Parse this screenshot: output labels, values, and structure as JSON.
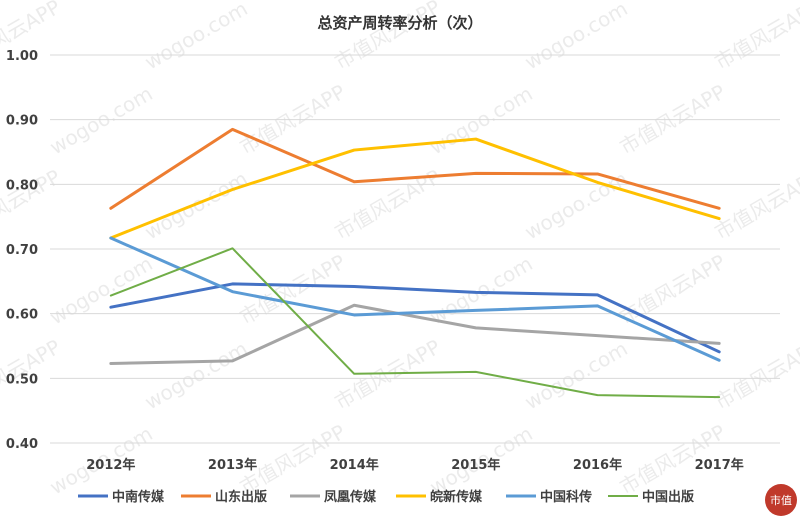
{
  "chart_data": {
    "type": "line",
    "title": "总资产周转率分析（次）",
    "categories": [
      "2012年",
      "2013年",
      "2014年",
      "2015年",
      "2016年",
      "2017年"
    ],
    "ylim": [
      0.4,
      1.0
    ],
    "yticks": [
      "0.40",
      "0.50",
      "0.60",
      "0.70",
      "0.80",
      "0.90",
      "1.00"
    ],
    "grid": true,
    "legend_position": "bottom",
    "series": [
      {
        "name": "中南传媒",
        "color": "#4472C4",
        "values": [
          0.61,
          0.646,
          0.642,
          0.633,
          0.629,
          0.541
        ]
      },
      {
        "name": "山东出版",
        "color": "#ED7D31",
        "values": [
          0.763,
          0.885,
          0.804,
          0.817,
          0.816,
          0.763
        ]
      },
      {
        "name": "凤凰传媒",
        "color": "#A5A5A5",
        "values": [
          0.523,
          0.527,
          0.613,
          0.578,
          0.566,
          0.554
        ]
      },
      {
        "name": "皖新传媒",
        "color": "#FFC000",
        "values": [
          0.717,
          0.792,
          0.853,
          0.87,
          0.803,
          0.747
        ]
      },
      {
        "name": "中国科传",
        "color": "#5B9BD5",
        "values": [
          0.717,
          0.634,
          0.598,
          0.605,
          0.612,
          0.528
        ]
      },
      {
        "name": "中国出版",
        "color": "#70AD47",
        "values": [
          0.628,
          0.701,
          0.507,
          0.51,
          0.474,
          0.471
        ]
      }
    ]
  },
  "watermark": {
    "text": "市值风云APP",
    "url_text": "wogoo.com"
  },
  "logo": {
    "text": "市值",
    "color": "#c0392b"
  }
}
